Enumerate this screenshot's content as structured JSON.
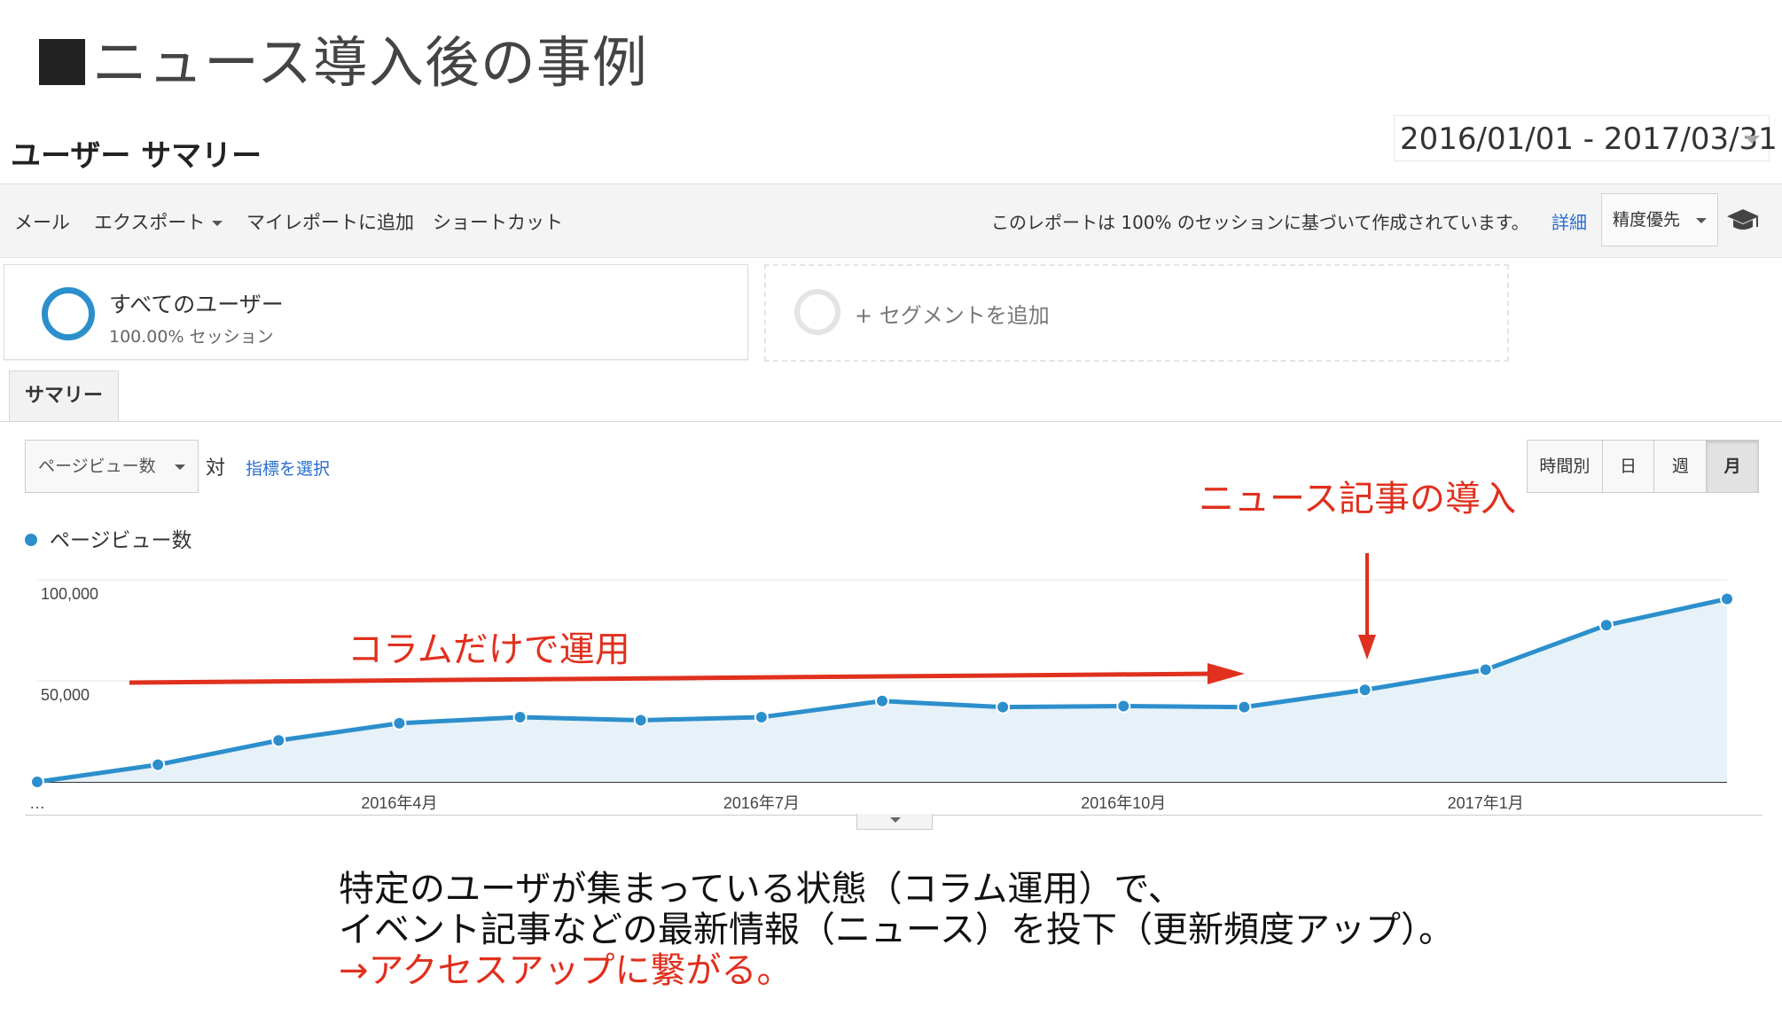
{
  "slide_title": "ニュース導入後の事例",
  "report": {
    "title": "ユーザー サマリー",
    "date_range": "2016/01/01 - 2017/03/31"
  },
  "toolbar": {
    "email": "メール",
    "export": "エクスポート",
    "add_to_dashboard": "マイレポートに追加",
    "shortcut": "ショートカット",
    "sampling_note": "このレポートは 100% のセッションに基づいて作成されています。",
    "details_link": "詳細",
    "precision": "精度優先",
    "icon": "graduation-cap-icon"
  },
  "segments": {
    "active_name": "すべてのユーザー",
    "active_pct": "100.00% セッション",
    "add_label": "+ セグメントを追加"
  },
  "tabs": [
    "サマリー"
  ],
  "controls": {
    "metric": "ページビュー数",
    "vs": "対",
    "choose_metric": "指標を選択",
    "granularity": [
      "時間別",
      "日",
      "週",
      "月"
    ],
    "granularity_selected": "月"
  },
  "legend_label": "ページビュー数",
  "annotations": {
    "column_only": "コラムだけで運用",
    "news_intro": "ニュース記事の導入"
  },
  "caption": {
    "line1": "特定のユーザが集まっている状態（コラム運用）で、",
    "line2": "イベント記事などの最新情報（ニュース）を投下（更新頻度アップ）。",
    "line3": "→アクセスアップに繋がる。"
  },
  "colors": {
    "series": "#2c8fcc",
    "area": "#e6f1f8",
    "annotation": "#e0301e"
  },
  "chart_data": {
    "type": "area",
    "x": [
      "2016-01",
      "2016-02",
      "2016-03",
      "2016-04",
      "2016-05",
      "2016-06",
      "2016-07",
      "2016-08",
      "2016-09",
      "2016-10",
      "2016-11",
      "2016-12",
      "2017-01",
      "2017-02",
      "2017-03"
    ],
    "series": [
      {
        "name": "ページビュー数",
        "values": [
          0,
          8500,
          20500,
          29000,
          32000,
          30500,
          32000,
          40000,
          37000,
          37500,
          37000,
          45500,
          55500,
          77500,
          90500
        ]
      }
    ],
    "ylim": [
      0,
      107000
    ],
    "y_ticks": [
      {
        "value": 100000,
        "label": "100,000"
      },
      {
        "value": 50000,
        "label": "50,000"
      }
    ],
    "x_ticks": [
      {
        "index": 0,
        "label": "…"
      },
      {
        "index": 3,
        "label": "2016年4月"
      },
      {
        "index": 6,
        "label": "2016年7月"
      },
      {
        "index": 9,
        "label": "2016年10月"
      },
      {
        "index": 12,
        "label": "2017年1月"
      }
    ],
    "grid": true
  }
}
